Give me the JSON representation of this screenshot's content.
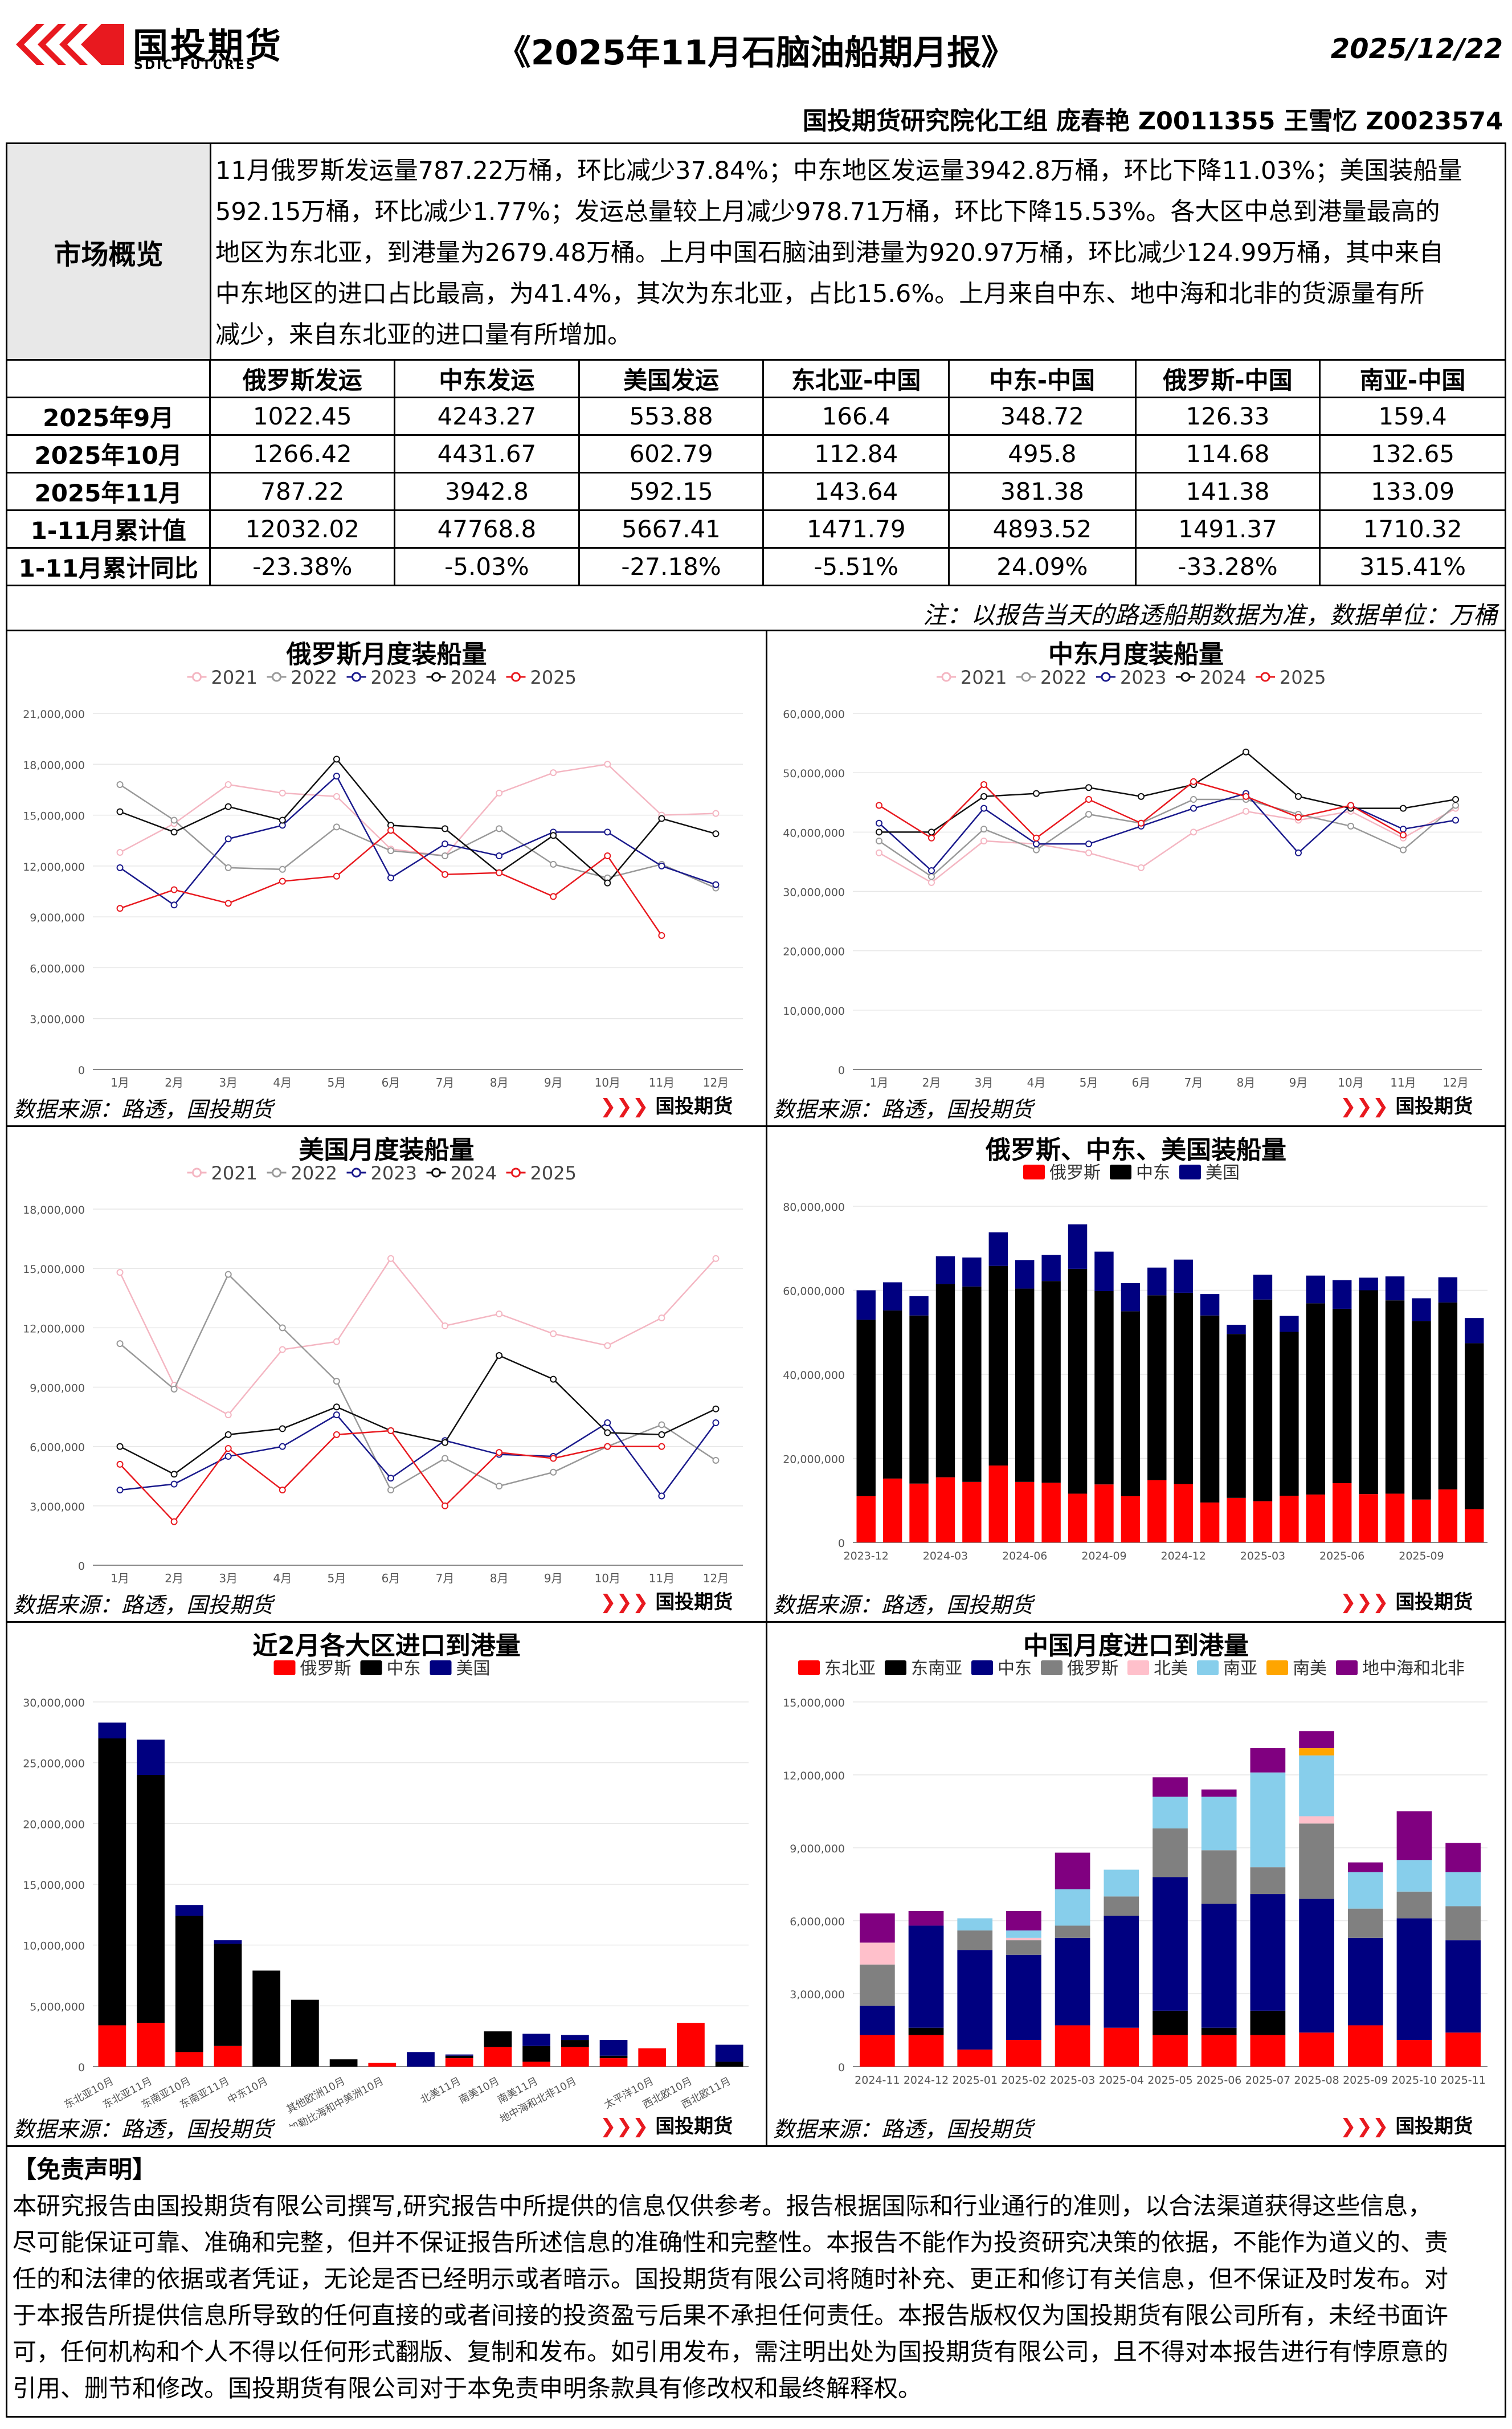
{
  "header": {
    "brand_cn": "国投期货",
    "brand_en": "SDIC FUTURES",
    "title": "《2025年11月石脑油船期月报》",
    "date": "2025/12/22",
    "authors": "国投期货研究院化工组 庞春艳 Z0011355 王雪忆 Z0023574"
  },
  "overview": {
    "label": "市场概览",
    "lines": [
      "11月俄罗斯发运量787.22万桶，环比减少37.84%；中东地区发运量3942.8万桶，环比下降11.03%；美国装船量",
      "592.15万桶，环比减少1.77%；发运总量较上月减少978.71万桶，环比下降15.53%。各大区中总到港量最高的",
      "地区为东北亚，到港量为2679.48万桶。上月中国石脑油到港量为920.97万桶，环比减少124.99万桶，其中来自",
      "中东地区的进口占比最高，为41.4%，其次为东北亚，占比15.6%。上月来自中东、地中海和北非的货源量有所",
      "减少，来自东北亚的进口量有所增加。"
    ]
  },
  "table": {
    "headers": [
      "",
      "俄罗斯发运",
      "中东发运",
      "美国发运",
      "东北亚-中国",
      "中东-中国",
      "俄罗斯-中国",
      "南亚-中国"
    ],
    "rows": [
      [
        "2025年9月",
        "1022.45",
        "4243.27",
        "553.88",
        "166.4",
        "348.72",
        "126.33",
        "159.4"
      ],
      [
        "2025年10月",
        "1266.42",
        "4431.67",
        "602.79",
        "112.84",
        "495.8",
        "114.68",
        "132.65"
      ],
      [
        "2025年11月",
        "787.22",
        "3942.8",
        "592.15",
        "143.64",
        "381.38",
        "141.38",
        "133.09"
      ],
      [
        "1-11月累计值",
        "12032.02",
        "47768.8",
        "5667.41",
        "1471.79",
        "4893.52",
        "1491.37",
        "1710.32"
      ],
      [
        "1-11月累计同比",
        "-23.38%",
        "-5.03%",
        "-27.18%",
        "-5.51%",
        "24.09%",
        "-33.28%",
        "315.41%"
      ]
    ],
    "note": "注：以报告当天的路透船期数据为准，数据单位：万桶"
  },
  "source_text": "数据来源：路透，国投期货",
  "chart_data": [
    {
      "type": "line",
      "title": "俄罗斯月度装船量",
      "x": [
        "1月",
        "2月",
        "3月",
        "4月",
        "5月",
        "6月",
        "7月",
        "8月",
        "9月",
        "10月",
        "11月",
        "12月"
      ],
      "ylim": [
        0,
        21000000
      ],
      "yticks": [
        "0",
        "3,000,000",
        "6,000,000",
        "9,000,000",
        "12,000,000",
        "15,000,000",
        "18,000,000",
        "21,000,000"
      ],
      "legend_position": "top",
      "series": [
        {
          "name": "2021",
          "color": "#f4b6c2",
          "values": [
            12800000,
            14500000,
            16800000,
            16300000,
            16100000,
            13000000,
            12600000,
            16300000,
            17500000,
            18000000,
            15000000,
            15100000
          ]
        },
        {
          "name": "2022",
          "color": "#999999",
          "values": [
            16800000,
            14700000,
            11900000,
            11800000,
            14300000,
            12900000,
            12600000,
            14200000,
            12100000,
            11300000,
            12100000,
            10700000
          ]
        },
        {
          "name": "2023",
          "color": "#1a1a8c",
          "values": [
            11900000,
            9700000,
            13600000,
            14400000,
            17300000,
            11300000,
            13300000,
            12600000,
            14000000,
            14000000,
            12000000,
            10900000
          ]
        },
        {
          "name": "2024",
          "color": "#111111",
          "values": [
            15200000,
            14000000,
            15500000,
            14700000,
            18300000,
            14400000,
            14200000,
            11600000,
            13800000,
            11000000,
            14800000,
            13900000
          ]
        },
        {
          "name": "2025",
          "color": "#e8191f",
          "values": [
            9500000,
            10600000,
            9800000,
            11100000,
            11400000,
            14100000,
            11500000,
            11600000,
            10200000,
            12600000,
            7900000,
            null
          ]
        }
      ]
    },
    {
      "type": "line",
      "title": "中东月度装船量",
      "x": [
        "1月",
        "2月",
        "3月",
        "4月",
        "5月",
        "6月",
        "7月",
        "8月",
        "9月",
        "10月",
        "11月",
        "12月"
      ],
      "ylim": [
        0,
        60000000
      ],
      "yticks": [
        "0",
        "10,000,000",
        "20,000,000",
        "30,000,000",
        "40,000,000",
        "50,000,000",
        "60,000,000"
      ],
      "legend_position": "top",
      "series": [
        {
          "name": "2021",
          "color": "#f4b6c2",
          "values": [
            36500000,
            31500000,
            38500000,
            38000000,
            36500000,
            34000000,
            40000000,
            43500000,
            42000000,
            43500000,
            39000000,
            44000000
          ]
        },
        {
          "name": "2022",
          "color": "#999999",
          "values": [
            38500000,
            32500000,
            40500000,
            37000000,
            43000000,
            41500000,
            45500000,
            45500000,
            43000000,
            41000000,
            37000000,
            44500000
          ]
        },
        {
          "name": "2023",
          "color": "#1a1a8c",
          "values": [
            41500000,
            33500000,
            44000000,
            38000000,
            38000000,
            41000000,
            44000000,
            46500000,
            36500000,
            44500000,
            40500000,
            42000000
          ]
        },
        {
          "name": "2024",
          "color": "#111111",
          "values": [
            40000000,
            40000000,
            46000000,
            46500000,
            47500000,
            46000000,
            48000000,
            53500000,
            46000000,
            44000000,
            44000000,
            45500000
          ]
        },
        {
          "name": "2025",
          "color": "#e8191f",
          "values": [
            44500000,
            39000000,
            48000000,
            39000000,
            45500000,
            41500000,
            48500000,
            46000000,
            42500000,
            44500000,
            39500000,
            null
          ]
        }
      ]
    },
    {
      "type": "line",
      "title": "美国月度装船量",
      "x": [
        "1月",
        "2月",
        "3月",
        "4月",
        "5月",
        "6月",
        "7月",
        "8月",
        "9月",
        "10月",
        "11月",
        "12月"
      ],
      "ylim": [
        0,
        18000000
      ],
      "yticks": [
        "0",
        "3,000,000",
        "6,000,000",
        "9,000,000",
        "12,000,000",
        "15,000,000",
        "18,000,000"
      ],
      "legend_position": "top",
      "series": [
        {
          "name": "2021",
          "color": "#f4b6c2",
          "values": [
            14800000,
            9100000,
            7600000,
            10900000,
            11300000,
            15500000,
            12100000,
            12700000,
            11700000,
            11100000,
            12500000,
            15500000
          ]
        },
        {
          "name": "2022",
          "color": "#999999",
          "values": [
            11200000,
            8900000,
            14700000,
            12000000,
            9300000,
            3800000,
            5400000,
            4000000,
            4700000,
            6000000,
            7100000,
            5300000
          ]
        },
        {
          "name": "2023",
          "color": "#1a1a8c",
          "values": [
            3800000,
            4100000,
            5500000,
            6000000,
            7600000,
            4400000,
            6300000,
            5600000,
            5500000,
            7200000,
            3500000,
            7200000
          ]
        },
        {
          "name": "2024",
          "color": "#111111",
          "values": [
            6000000,
            4600000,
            6600000,
            6900000,
            8000000,
            6800000,
            6200000,
            10600000,
            9400000,
            6700000,
            6600000,
            7900000
          ]
        },
        {
          "name": "2025",
          "color": "#e8191f",
          "values": [
            5100000,
            2200000,
            5900000,
            3800000,
            6600000,
            6800000,
            3000000,
            5700000,
            5400000,
            6000000,
            6000000,
            null
          ]
        }
      ]
    },
    {
      "type": "bar",
      "stacked": true,
      "title": "俄罗斯、中东、美国装船量",
      "categories": [
        "2023-12",
        "2024-01",
        "2024-02",
        "2024-03",
        "2024-04",
        "2024-05",
        "2024-06",
        "2024-07",
        "2024-08",
        "2024-09",
        "2024-10",
        "2024-11",
        "2024-12",
        "2025-01",
        "2025-02",
        "2025-03",
        "2025-04",
        "2025-05",
        "2025-06",
        "2025-07",
        "2025-08",
        "2025-09",
        "2025-10",
        "2025-11"
      ],
      "xticks": [
        "2023-12",
        "2024-03",
        "2024-06",
        "2024-09",
        "2024-12",
        "2025-03",
        "2025-06",
        "2025-09"
      ],
      "ylim": [
        0,
        80000000
      ],
      "yticks": [
        "0",
        "20,000,000",
        "40,000,000",
        "60,000,000",
        "80,000,000"
      ],
      "legend_position": "top",
      "series": [
        {
          "name": "俄罗斯",
          "color": "#ff0000",
          "values": [
            11000000,
            15200000,
            14000000,
            15500000,
            14400000,
            18300000,
            14400000,
            14200000,
            11600000,
            13800000,
            11000000,
            14800000,
            13900000,
            9500000,
            10600000,
            9800000,
            11100000,
            11400000,
            14100000,
            11500000,
            11600000,
            10200000,
            12600000,
            7900000
          ]
        },
        {
          "name": "中东",
          "color": "#000000",
          "values": [
            42000000,
            40000000,
            40000000,
            46000000,
            46500000,
            47500000,
            46000000,
            48000000,
            53500000,
            46000000,
            44000000,
            44000000,
            45500000,
            44500000,
            39000000,
            48000000,
            39000000,
            45500000,
            41500000,
            48500000,
            46000000,
            42500000,
            44500000,
            39500000
          ]
        },
        {
          "name": "美国",
          "color": "#000080",
          "values": [
            7000000,
            6700000,
            4600000,
            6600000,
            6900000,
            8000000,
            6800000,
            6200000,
            10600000,
            9400000,
            6700000,
            6600000,
            7900000,
            5100000,
            2200000,
            5900000,
            3800000,
            6600000,
            6800000,
            3000000,
            5700000,
            5400000,
            6000000,
            6000000
          ]
        }
      ]
    },
    {
      "type": "bar",
      "stacked": true,
      "title": "近2月各大区进口到港量",
      "categories": [
        "东北亚10月",
        "东北亚11月",
        "东南亚10月",
        "东南亚11月",
        "中东10月",
        "中东11月",
        "其他欧洲10月",
        "其他欧洲11月",
        "北美10月",
        "北美11月",
        "南美10月",
        "南美11月",
        "地中海和北非10月",
        "地中海和北非11月",
        "太平洋10月",
        "西北欧10月",
        "西北欧11月"
      ],
      "xticks": [
        "东北亚10月",
        "东北亚11月",
        "东南亚10月",
        "东南亚11月",
        "中东10月",
        "其他欧洲10月",
        "加勒比海和中美洲10月",
        "北美11月",
        "南美10月",
        "南美11月",
        "地中海和北非10月",
        "太平洋10月",
        "西北欧10月",
        "西北欧11月"
      ],
      "ylim": [
        0,
        30000000
      ],
      "yticks": [
        "0",
        "5,000,000",
        "10,000,000",
        "15,000,000",
        "20,000,000",
        "25,000,000",
        "30,000,000"
      ],
      "legend_position": "top",
      "series": [
        {
          "name": "俄罗斯",
          "color": "#ff0000",
          "values": [
            3400000,
            3600000,
            1200000,
            1700000,
            0,
            0,
            0,
            300000,
            0,
            700000,
            1600000,
            400000,
            1600000,
            700000,
            1500000,
            3600000,
            0
          ]
        },
        {
          "name": "中东",
          "color": "#000000",
          "values": [
            23600000,
            20400000,
            11200000,
            8400000,
            7900000,
            5500000,
            600000,
            0,
            0,
            200000,
            1300000,
            1300000,
            600000,
            200000,
            0,
            0,
            400000
          ]
        },
        {
          "name": "美国",
          "color": "#000080",
          "values": [
            1300000,
            2900000,
            900000,
            300000,
            0,
            0,
            0,
            0,
            1200000,
            100000,
            0,
            1000000,
            400000,
            1300000,
            0,
            0,
            1400000
          ]
        }
      ]
    },
    {
      "type": "bar",
      "stacked": true,
      "title": "中国月度进口到港量",
      "categories": [
        "2024-11",
        "2024-12",
        "2025-01",
        "2025-02",
        "2025-03",
        "2025-04",
        "2025-05",
        "2025-06",
        "2025-07",
        "2025-08",
        "2025-09",
        "2025-10",
        "2025-11"
      ],
      "ylim": [
        0,
        15000000
      ],
      "yticks": [
        "0",
        "3,000,000",
        "6,000,000",
        "9,000,000",
        "12,000,000",
        "15,000,000"
      ],
      "legend_position": "top",
      "series": [
        {
          "name": "东北亚",
          "color": "#ff0000",
          "values": [
            1300000,
            1300000,
            700000,
            1100000,
            1700000,
            1600000,
            1300000,
            1300000,
            1300000,
            1400000,
            1700000,
            1100000,
            1400000
          ]
        },
        {
          "name": "东南亚",
          "color": "#000000",
          "values": [
            0,
            300000,
            0,
            0,
            0,
            0,
            1000000,
            300000,
            1000000,
            0,
            0,
            0,
            0
          ]
        },
        {
          "name": "中东",
          "color": "#000080",
          "values": [
            1200000,
            4200000,
            4100000,
            3500000,
            3600000,
            4600000,
            5500000,
            5100000,
            4800000,
            5500000,
            3600000,
            5000000,
            3800000
          ]
        },
        {
          "name": "俄罗斯",
          "color": "#808080",
          "values": [
            1700000,
            0,
            800000,
            600000,
            500000,
            800000,
            2000000,
            2200000,
            1100000,
            3100000,
            1200000,
            1100000,
            1400000
          ]
        },
        {
          "name": "北美",
          "color": "#ffc0cb",
          "values": [
            900000,
            0,
            0,
            100000,
            0,
            0,
            0,
            0,
            0,
            300000,
            0,
            0,
            0
          ]
        },
        {
          "name": "南亚",
          "color": "#87ceeb",
          "values": [
            0,
            0,
            500000,
            300000,
            1500000,
            1100000,
            1300000,
            2200000,
            3900000,
            2500000,
            1500000,
            1300000,
            1400000
          ]
        },
        {
          "name": "南美",
          "color": "#ffa500",
          "values": [
            0,
            0,
            0,
            0,
            0,
            0,
            0,
            0,
            0,
            300000,
            0,
            0,
            0
          ]
        },
        {
          "name": "地中海和北非",
          "color": "#800080",
          "values": [
            1200000,
            600000,
            0,
            800000,
            1500000,
            0,
            800000,
            300000,
            1000000,
            700000,
            400000,
            2000000,
            1200000
          ]
        }
      ]
    }
  ],
  "disclaimer": {
    "title": "【免责声明】",
    "lines": [
      "本研究报告由国投期货有限公司撰写,研究报告中所提供的信息仅供参考。报告根据国际和行业通行的准则，以合法渠道获得这些信息，",
      "尽可能保证可靠、准确和完整，但并不保证报告所述信息的准确性和完整性。本报告不能作为投资研究决策的依据，不能作为道义的、责",
      "任的和法律的依据或者凭证，无论是否已经明示或者暗示。国投期货有限公司将随时补充、更正和修订有关信息，但不保证及时发布。对",
      "于本报告所提供信息所导致的任何直接的或者间接的投资盈亏后果不承担任何责任。本报告版权仅为国投期货有限公司所有，未经书面许",
      "可，任何机构和个人不得以任何形式翻版、复制和发布。如引用发布，需注明出处为国投期货有限公司，且不得对本报告进行有悖原意的",
      "引用、删节和修改。国投期货有限公司对于本免责申明条款具有修改权和最终解释权。"
    ]
  }
}
